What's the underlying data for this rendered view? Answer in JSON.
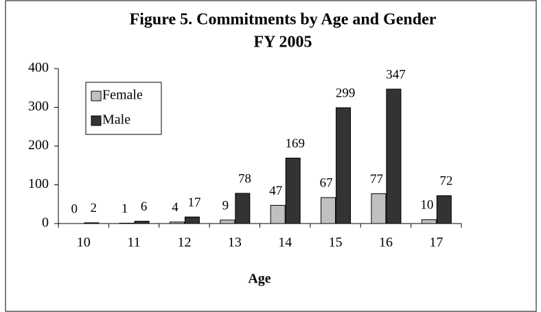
{
  "chart_data": {
    "type": "bar",
    "title": [
      "Figure 5.  Commitments by Age and Gender",
      "FY 2005"
    ],
    "categories": [
      "10",
      "11",
      "12",
      "13",
      "14",
      "15",
      "16",
      "17"
    ],
    "series": [
      {
        "name": "Female",
        "color": "#c0c0c0",
        "values": [
          0,
          1,
          4,
          9,
          47,
          67,
          77,
          10
        ]
      },
      {
        "name": "Male",
        "color": "#333333",
        "values": [
          2,
          6,
          17,
          78,
          169,
          299,
          347,
          72
        ]
      }
    ],
    "xlabel": "Age",
    "ylim": [
      0,
      400
    ],
    "yticks": [
      0,
      100,
      200,
      300,
      400
    ],
    "legend": "upper left"
  }
}
